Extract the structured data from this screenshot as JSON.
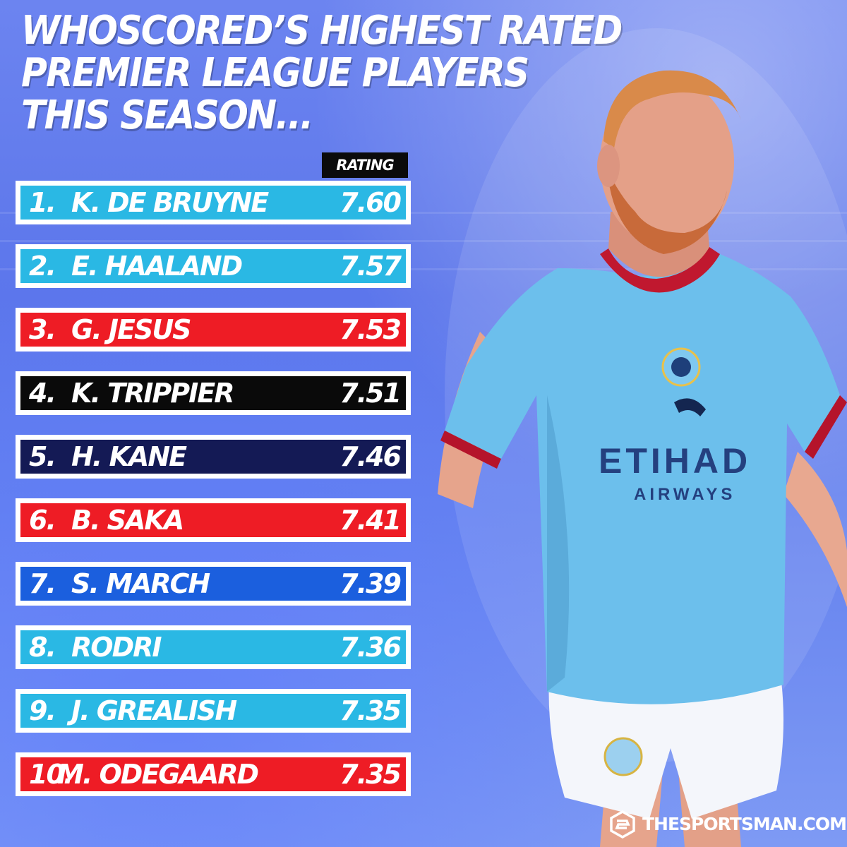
{
  "title": {
    "line1": "WHOSCORED’S HIGHEST RATED",
    "line2": "PREMIER LEAGUE PLAYERS",
    "line3": "THIS SEASON..."
  },
  "rating_header": "RATING",
  "rows": [
    {
      "rank": "1.",
      "name": "K. DE BRUYNE",
      "rating": "7.60",
      "color": "#2ab8e4"
    },
    {
      "rank": "2.",
      "name": "E. HAALAND",
      "rating": "7.57",
      "color": "#2ab8e4"
    },
    {
      "rank": "3.",
      "name": "G. JESUS",
      "rating": "7.53",
      "color": "#ee1c25"
    },
    {
      "rank": "4.",
      "name": "K. TRIPPIER",
      "rating": "7.51",
      "color": "#0a0a0a"
    },
    {
      "rank": "5.",
      "name": "H. KANE",
      "rating": "7.46",
      "color": "#141a55"
    },
    {
      "rank": "6.",
      "name": "B. SAKA",
      "rating": "7.41",
      "color": "#ee1c25"
    },
    {
      "rank": "7.",
      "name": "S. MARCH",
      "rating": "7.39",
      "color": "#1b5fde"
    },
    {
      "rank": "8.",
      "name": "RODRI",
      "rating": "7.36",
      "color": "#2ab8e4"
    },
    {
      "rank": "9.",
      "name": "J. GREALISH",
      "rating": "7.35",
      "color": "#2ab8e4"
    },
    {
      "rank": "10.",
      "name": "M. ODEGAARD",
      "rating": "7.35",
      "color": "#ee1c25"
    }
  ],
  "player": {
    "shirt_sponsor_1": "ETIHAD",
    "shirt_sponsor_2": "AIRWAYS"
  },
  "brand": "THESPORTSMAN.COM",
  "colors": {
    "sky_blue": "#2ab8e4",
    "red": "#ee1c25",
    "black": "#0a0a0a",
    "navy": "#141a55",
    "blue": "#1b5fde"
  }
}
